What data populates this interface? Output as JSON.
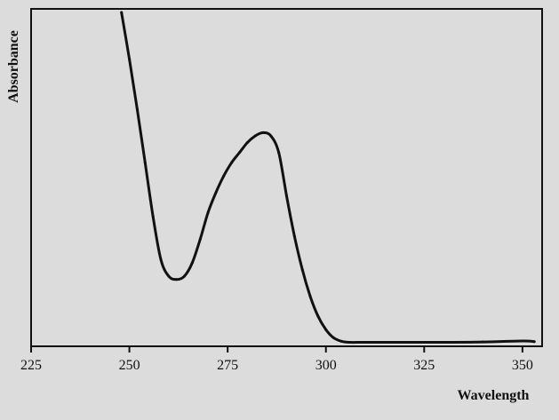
{
  "chart_data": {
    "type": "line",
    "title": "",
    "xlabel": "Wavelength",
    "ylabel": "Absorbance",
    "xlim": [
      225,
      355
    ],
    "ylim": [
      0,
      1.0
    ],
    "x_ticks": [
      "225",
      "250",
      "275",
      "300",
      "325",
      "350"
    ],
    "grid": false,
    "series": [
      {
        "x": [
          248,
          250,
          252,
          254,
          256,
          258,
          260,
          262,
          264,
          266,
          268,
          270,
          272,
          274,
          276,
          278,
          280,
          282,
          284,
          286,
          288,
          290,
          292,
          294,
          296,
          298,
          300,
          302,
          304,
          306,
          310,
          320,
          330,
          340,
          350,
          353
        ],
        "y": [
          1.0,
          0.86,
          0.71,
          0.55,
          0.39,
          0.26,
          0.21,
          0.2,
          0.21,
          0.25,
          0.32,
          0.4,
          0.46,
          0.51,
          0.55,
          0.58,
          0.61,
          0.63,
          0.64,
          0.63,
          0.58,
          0.45,
          0.33,
          0.23,
          0.15,
          0.09,
          0.05,
          0.025,
          0.015,
          0.012,
          0.012,
          0.012,
          0.012,
          0.013,
          0.016,
          0.014
        ],
        "color": "#111111"
      }
    ]
  }
}
